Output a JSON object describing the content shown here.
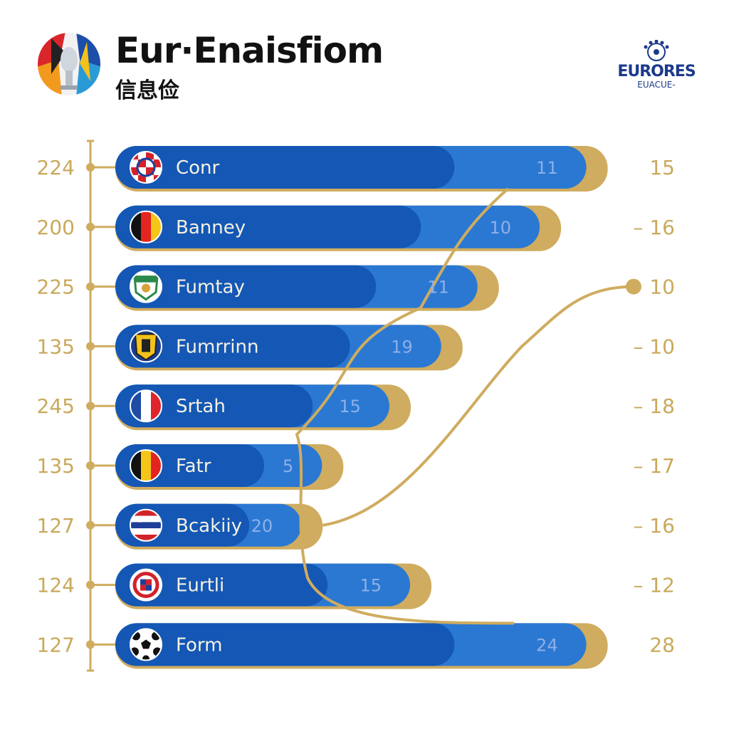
{
  "header": {
    "title": "Eur·Enaisfiom",
    "subtitle": "信息俭",
    "brand_name": "EURORES",
    "brand_sub": "EUACUE-"
  },
  "colors": {
    "bar_dark": "#1457b5",
    "bar_light": "#2a78d2",
    "gold": "#cfac5f",
    "text_dark": "#111111",
    "brand_blue": "#1c3a8c"
  },
  "chart_data": {
    "type": "bar",
    "orientation": "horizontal",
    "title": "Eur·Enaisfiom",
    "categories": [
      "Conr",
      "Banney",
      "Fumtay",
      "Fumrrinn",
      "Srtah",
      "Fatr",
      "Bcakiiy",
      "Eurtli",
      "Form"
    ],
    "left_values": [
      "224",
      "200",
      "225",
      "135",
      "245",
      "135",
      "127",
      "124",
      "127"
    ],
    "values": [
      11,
      10,
      11,
      19,
      15,
      5,
      20,
      15,
      24
    ],
    "right_values": [
      "15",
      "– 16",
      "10",
      "– 10",
      "– 18",
      "– 17",
      "– 16",
      "– 12",
      "28"
    ],
    "flag_icons": [
      "croatia-crest-icon",
      "germany-flag-icon",
      "crest-icon",
      "yellow-crest-icon",
      "france-flag-icon",
      "belgium-flag-icon",
      "striped-flag-icon",
      "checkered-crest-icon",
      "football-icon"
    ],
    "bar_extents": [
      0.95,
      0.86,
      0.74,
      0.67,
      0.57,
      0.44,
      0.4,
      0.61,
      0.95
    ],
    "xlabel": "",
    "ylabel": "",
    "legend": "none"
  }
}
